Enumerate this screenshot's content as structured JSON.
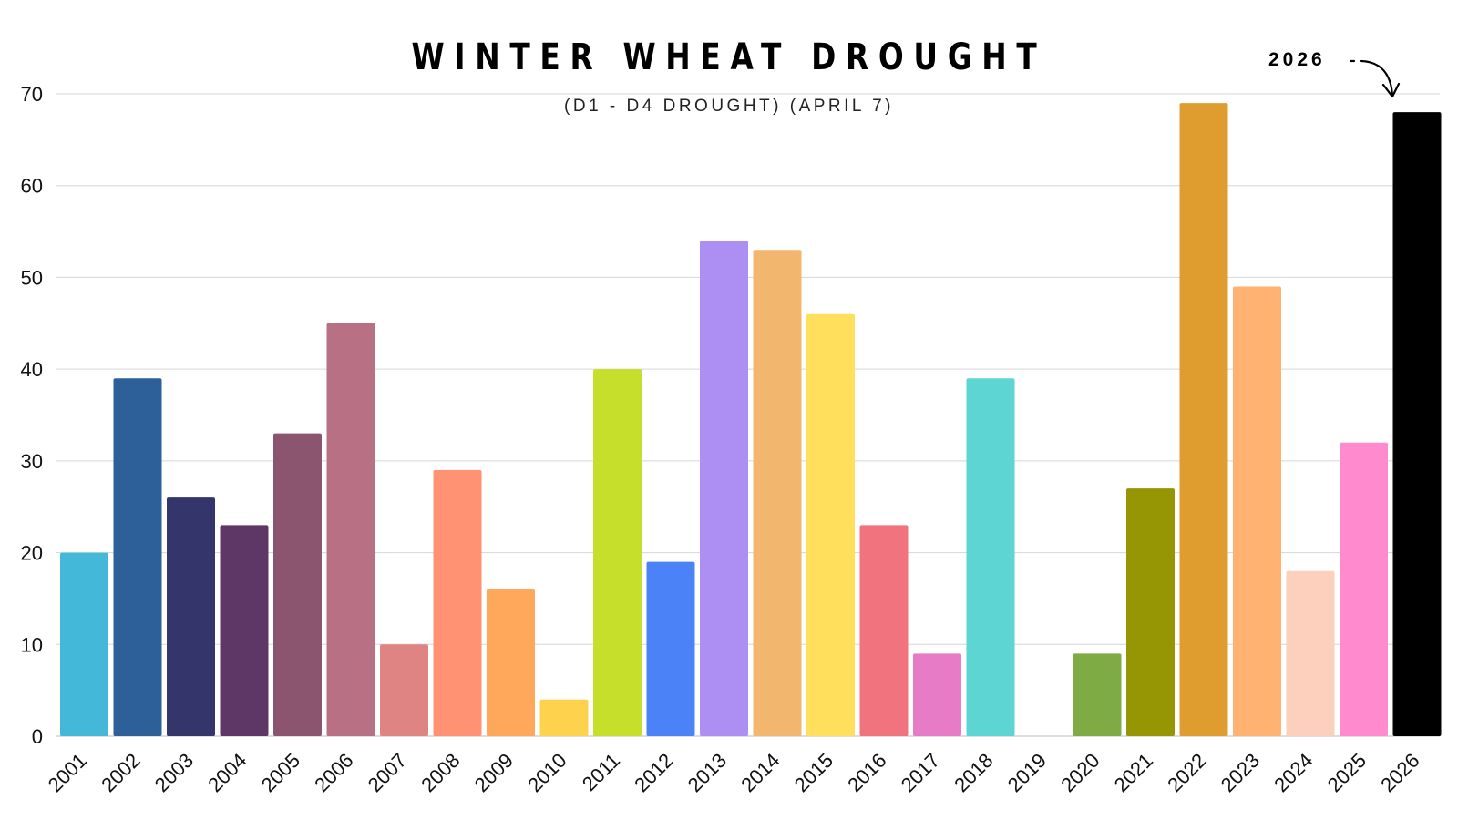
{
  "chart_data": {
    "type": "bar",
    "title": "WINTER WHEAT DROUGHT",
    "subtitle": "(D1 - D4 DROUGHT) (APRIL 7)",
    "xlabel": "",
    "ylabel": "",
    "ylim": [
      0,
      70
    ],
    "yticks": [
      "0",
      "10",
      "20",
      "30",
      "40",
      "50",
      "60",
      "70"
    ],
    "grid": true,
    "categories": [
      "2001",
      "2002",
      "2003",
      "2004",
      "2005",
      "2006",
      "2007",
      "2008",
      "2009",
      "2010",
      "2011",
      "2012",
      "2013",
      "2014",
      "2015",
      "2016",
      "2017",
      "2018",
      "2019",
      "2020",
      "2021",
      "2022",
      "2023",
      "2024",
      "2025",
      "2026"
    ],
    "values": [
      20,
      39,
      26,
      23,
      33,
      45,
      10,
      29,
      16,
      4,
      40,
      19,
      54,
      53,
      46,
      23,
      9,
      39,
      0,
      9,
      27,
      69,
      49,
      18,
      32,
      68
    ],
    "colors": [
      "#43b8d8",
      "#2d6099",
      "#33356b",
      "#5e3766",
      "#8b5570",
      "#b87184",
      "#e08383",
      "#ff9273",
      "#ffa75a",
      "#ffd24e",
      "#c5df2b",
      "#4c82f7",
      "#ad8ef2",
      "#f2b66e",
      "#ffdf5c",
      "#f0737d",
      "#e87bc6",
      "#5dd5d3",
      "#ffffff",
      "#7fab45",
      "#969604",
      "#df9d30",
      "#ffb272",
      "#fdd0be",
      "#ff8bce",
      "#000000"
    ],
    "annotations": [
      {
        "text": "2026",
        "target": "2026"
      }
    ]
  }
}
